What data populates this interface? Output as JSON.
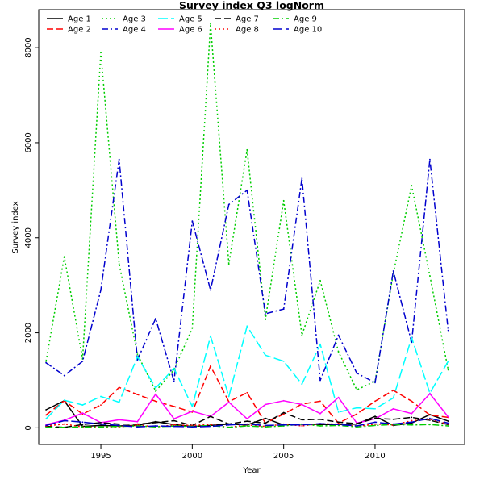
{
  "chart_data": {
    "type": "line",
    "title": "Survey index Q3 logNorm",
    "xlabel": "Year",
    "ylabel": "Survey index",
    "xlim": [
      1991.6,
      2014.9
    ],
    "ylim": [
      -350,
      8800
    ],
    "xticks": [
      "1995",
      "2000",
      "2005",
      "2010"
    ],
    "yticks": [
      "0",
      "2000",
      "4000",
      "6000",
      "8000"
    ],
    "legend_position": "top-left",
    "x": [
      1992,
      1993,
      1994,
      1995,
      1996,
      1997,
      1998,
      1999,
      2000,
      2001,
      2002,
      2003,
      2004,
      2005,
      2006,
      2007,
      2008,
      2009,
      2010,
      2011,
      2012,
      2013,
      2014
    ],
    "series": [
      {
        "name": "Age 1",
        "color": "#000000",
        "dash": "solid",
        "values": [
          380,
          570,
          30,
          50,
          40,
          50,
          130,
          70,
          30,
          50,
          80,
          60,
          200,
          60,
          80,
          70,
          70,
          80,
          240,
          50,
          100,
          280,
          140
        ]
      },
      {
        "name": "Age 2",
        "color": "#ff0000",
        "dash": "dashed",
        "values": [
          270,
          570,
          290,
          480,
          850,
          700,
          560,
          450,
          330,
          1300,
          550,
          740,
          100,
          290,
          500,
          560,
          100,
          290,
          560,
          790,
          560,
          270,
          220
        ]
      },
      {
        "name": "Age 3",
        "color": "#00cd00",
        "dash": "dotted",
        "values": [
          1400,
          3600,
          1450,
          7900,
          3450,
          1550,
          770,
          1220,
          2100,
          8500,
          3450,
          5850,
          2280,
          4780,
          1950,
          3100,
          1600,
          800,
          980,
          3250,
          5100,
          3200,
          1220
        ]
      },
      {
        "name": "Age 4",
        "color": "#0000cd",
        "dash": "dashdot",
        "values": [
          1370,
          1100,
          1400,
          2900,
          5650,
          1430,
          2300,
          980,
          4350,
          2900,
          4700,
          5000,
          2400,
          2500,
          5250,
          1000,
          1950,
          1150,
          950,
          3300,
          1800,
          5650,
          2050
        ]
      },
      {
        "name": "Age 5",
        "color": "#00ffff",
        "dash": "longdash",
        "values": [
          190,
          580,
          480,
          660,
          540,
          1500,
          840,
          1250,
          450,
          1930,
          660,
          2140,
          1530,
          1400,
          920,
          1760,
          330,
          420,
          400,
          630,
          1900,
          730,
          1400
        ]
      },
      {
        "name": "Age 6",
        "color": "#ff00ff",
        "dash": "solid",
        "values": [
          70,
          160,
          310,
          110,
          170,
          130,
          710,
          190,
          350,
          240,
          540,
          190,
          490,
          570,
          490,
          300,
          640,
          100,
          190,
          400,
          300,
          720,
          230
        ]
      },
      {
        "name": "Age 7",
        "color": "#000000",
        "dash": "dashed",
        "values": [
          30,
          10,
          70,
          110,
          80,
          80,
          110,
          150,
          50,
          240,
          80,
          140,
          100,
          320,
          170,
          180,
          120,
          90,
          200,
          180,
          220,
          160,
          70
        ]
      },
      {
        "name": "Age 8",
        "color": "#ff0000",
        "dash": "dotted",
        "values": [
          40,
          80,
          20,
          20,
          20,
          60,
          20,
          60,
          50,
          70,
          10,
          60,
          30,
          80,
          40,
          90,
          80,
          30,
          80,
          60,
          150,
          180,
          80
        ]
      },
      {
        "name": "Age 9",
        "color": "#00cd00",
        "dash": "dashdot",
        "values": [
          10,
          10,
          20,
          20,
          30,
          40,
          20,
          40,
          30,
          50,
          10,
          40,
          20,
          40,
          80,
          40,
          50,
          20,
          50,
          70,
          60,
          70,
          40
        ]
      },
      {
        "name": "Age 10",
        "color": "#0000cd",
        "dash": "longdash",
        "values": [
          50,
          150,
          120,
          80,
          50,
          20,
          40,
          30,
          20,
          30,
          60,
          80,
          50,
          60,
          60,
          90,
          70,
          40,
          120,
          80,
          120,
          200,
          100
        ]
      }
    ]
  }
}
